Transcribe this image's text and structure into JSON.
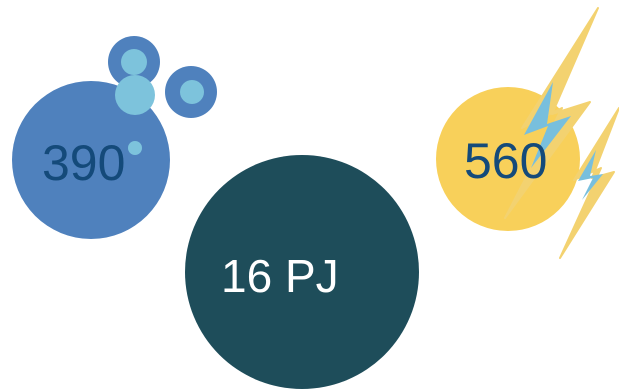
{
  "stats": {
    "water_value": "390",
    "energy_value": "560",
    "total_value": "16 PJ"
  },
  "icons": {
    "water": "water-bubbles-icon",
    "energy": "lightning-bolt-icon"
  },
  "colors": {
    "water_circle": "#4f81bd",
    "water_bubble_light": "#7dc3dc",
    "water_text": "#144a7a",
    "energy_circle": "#f8d05a",
    "energy_bolt": "#f3d270",
    "energy_bolt_inner": "#78bfdd",
    "total_circle": "#1e4d5a",
    "total_text": "#ffffff",
    "background": "#ffffff"
  }
}
